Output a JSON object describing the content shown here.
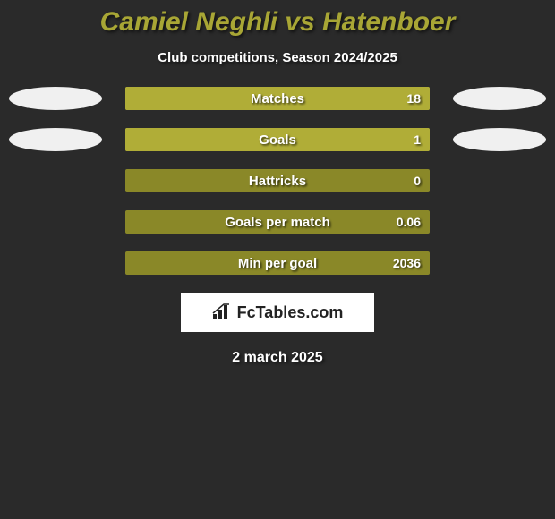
{
  "title_color": "#a8a635",
  "title_text": "Camiel Neghli vs Hatenboer",
  "subtitle": "Club competitions, Season 2024/2025",
  "background_color": "#2a2a2a",
  "bar_bg_color": "#8a8828",
  "bar_fill_color": "#b0ad37",
  "ellipse_color": "#f0f0f0",
  "rows": [
    {
      "label": "Matches",
      "value": "18",
      "fill_pct": 100,
      "show_left_ellipse": true,
      "show_right_ellipse": true
    },
    {
      "label": "Goals",
      "value": "1",
      "fill_pct": 100,
      "show_left_ellipse": true,
      "show_right_ellipse": true
    },
    {
      "label": "Hattricks",
      "value": "0",
      "fill_pct": 0,
      "show_left_ellipse": false,
      "show_right_ellipse": false
    },
    {
      "label": "Goals per match",
      "value": "0.06",
      "fill_pct": 0,
      "show_left_ellipse": false,
      "show_right_ellipse": false
    },
    {
      "label": "Min per goal",
      "value": "2036",
      "fill_pct": 0,
      "show_left_ellipse": false,
      "show_right_ellipse": false
    }
  ],
  "footer_brand": "FcTables.com",
  "date_text": "2 march 2025"
}
